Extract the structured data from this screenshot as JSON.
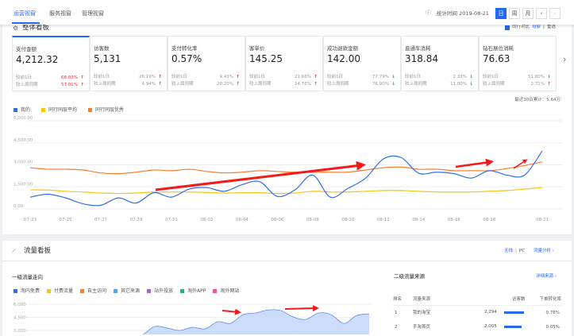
{
  "topbar": {
    "tabs": [
      "运营视窗",
      "服务视窗",
      "管理视窗"
    ],
    "active_tab": 0,
    "stat_time": "统计时间 2019-08-21",
    "period_buttons": [
      "日",
      "周",
      "月"
    ],
    "active_period": 0,
    "prev": "‹",
    "next": "›"
  },
  "overview": {
    "title": "整体看板",
    "compare_label": "同行对比",
    "compare_industry": "母婴",
    "compare_sep": "|",
    "compare_action": "重选",
    "compare_checked": true,
    "next_icon": "›",
    "metrics": [
      {
        "label": "支付金额",
        "value": "4,212.32",
        "rows": [
          {
            "label": "较前1日",
            "pct": "68.03%",
            "dir": "up"
          },
          {
            "label": "较上周同期",
            "pct": "57.01%",
            "dir": "up"
          }
        ]
      },
      {
        "label": "访客数",
        "value": "5,131",
        "rows": [
          {
            "label": "较前1日",
            "pct": "26.19%",
            "dir": "up"
          },
          {
            "label": "较上周同期",
            "pct": "4.94%",
            "dir": "up"
          }
        ]
      },
      {
        "label": "支付转化率",
        "value": "0.57%",
        "rows": [
          {
            "label": "较前1日",
            "pct": "9.43%",
            "dir": "up"
          },
          {
            "label": "较上周同期",
            "pct": "20.20%",
            "dir": "up"
          }
        ]
      },
      {
        "label": "客单价",
        "value": "145.25",
        "rows": [
          {
            "label": "较前1日",
            "pct": "21.68%",
            "dir": "up"
          },
          {
            "label": "较上周同期",
            "pct": "24.76%",
            "dir": "up"
          }
        ]
      },
      {
        "label": "成功退款金额",
        "value": "142.00",
        "rows": [
          {
            "label": "较前1日",
            "pct": "77.79%",
            "dir": "down"
          },
          {
            "label": "较上周同期",
            "pct": "76.90%",
            "dir": "down"
          }
        ]
      },
      {
        "label": "直通车消耗",
        "value": "318.84",
        "rows": [
          {
            "label": "较前1日",
            "pct": "2.33%",
            "dir": "down"
          },
          {
            "label": "较上周同期",
            "pct": "11.00%",
            "dir": "down"
          }
        ]
      },
      {
        "label": "钻石展位消耗",
        "value": "76.63",
        "rows": [
          {
            "label": "较前1日",
            "pct": "51.80%",
            "dir": "down"
          },
          {
            "label": "较上周同期",
            "pct": "2.71%",
            "dir": "up"
          }
        ]
      }
    ],
    "total_30d": "最近30日累计：5.64万"
  },
  "traffic": {
    "title": "流量看板",
    "device_wireless": "无线",
    "device_sep": "|",
    "device_pc": "PC",
    "analysis_link": "流量分析 ›",
    "level1_title": "一级流量走向",
    "level2_title": "二级流量来源",
    "level2_link": "详细来源 ›",
    "table": {
      "headers": [
        "排名",
        "流量来源",
        "访客数",
        "下单转化率"
      ],
      "rows": [
        {
          "rank": "1",
          "source": "我的淘宝",
          "visitors": "2,294",
          "share": 1.0,
          "rate": "0.78%"
        },
        {
          "rank": "2",
          "source": "手淘首页",
          "visitors": "2,005",
          "share": 0.87,
          "rate": "0.05%"
        }
      ]
    }
  },
  "chart_data": [
    {
      "type": "line",
      "x": [
        "07-23",
        "07-24",
        "07-25",
        "07-26",
        "07-27",
        "07-28",
        "07-29",
        "07-30",
        "07-31",
        "08-01",
        "08-02",
        "08-03",
        "08-04",
        "08-05",
        "08-06",
        "08-07",
        "08-08",
        "08-09",
        "08-10",
        "08-11",
        "08-12",
        "08-13",
        "08-14",
        "08-15",
        "08-16",
        "08-17",
        "08-18",
        "08-19",
        "08-20",
        "08-21"
      ],
      "tick_labels": [
        "07-23",
        "07-25",
        "07-27",
        "07-29",
        "07-31",
        "08-02",
        "08-04",
        "08-06",
        "08-08",
        "08-10",
        "08-12",
        "08-14",
        "08-16",
        "08-18",
        "08-21"
      ],
      "ylim": [
        0,
        6000
      ],
      "yticks": [
        "0.00",
        "1,500.00",
        "3,000.00",
        "4,500.00",
        "6,000.00"
      ],
      "grid": true,
      "legend": "top-left",
      "series": [
        {
          "name": "我的",
          "color": "#2f6fe8",
          "values": [
            800,
            1000,
            750,
            350,
            250,
            750,
            400,
            1100,
            800,
            1350,
            1450,
            1200,
            1650,
            1850,
            850,
            1300,
            2300,
            800,
            1400,
            2100,
            3400,
            3500,
            2430,
            2500,
            2400,
            2100,
            2600,
            2300,
            2300,
            3950
          ]
        },
        {
          "name": "同行同层平均",
          "color": "#f5c518",
          "values": [
            1300,
            1280,
            1200,
            1150,
            1080,
            1050,
            1080,
            1150,
            1150,
            1150,
            1120,
            1080,
            1100,
            1100,
            1050,
            1080,
            1200,
            1150,
            1150,
            1200,
            1250,
            1250,
            1200,
            1150,
            1150,
            1150,
            1200,
            1250,
            1350,
            1450
          ]
        },
        {
          "name": "同行同层优秀",
          "color": "#fa7d2e",
          "values": [
            2800,
            2700,
            2700,
            2650,
            2450,
            2400,
            2500,
            2650,
            2600,
            2700,
            2550,
            2450,
            2500,
            2600,
            2550,
            2500,
            2500,
            2500,
            2500,
            2650,
            2800,
            2850,
            2700,
            2700,
            2600,
            2600,
            2600,
            2750,
            2950,
            3200
          ]
        }
      ]
    },
    {
      "type": "area",
      "ylim": [
        0,
        6000
      ],
      "yticks": [
        "3,000",
        "4,500",
        "6,000"
      ],
      "legend": "top-left",
      "legend_items": [
        {
          "name": "淘内免费",
          "color": "#2f6fe8"
        },
        {
          "name": "付费流量",
          "color": "#f5c518"
        },
        {
          "name": "自主访问",
          "color": "#fa7d2e"
        },
        {
          "name": "其它来源",
          "color": "#4aa8f5"
        },
        {
          "name": "站外投放",
          "color": "#b35ce0"
        },
        {
          "name": "淘外APP",
          "color": "#14b89a"
        },
        {
          "name": "淘外网站",
          "color": "#f0569b"
        }
      ],
      "series": [
        {
          "name": "淘内免费",
          "color": "#2f6fe8",
          "values": [
            2000,
            2450,
            3450,
            3270,
            3000,
            3360,
            3180,
            4000,
            3800,
            4800,
            5000,
            5350,
            5270,
            4540,
            4270,
            5000,
            4800,
            3800,
            4700,
            4900
          ]
        }
      ]
    }
  ]
}
